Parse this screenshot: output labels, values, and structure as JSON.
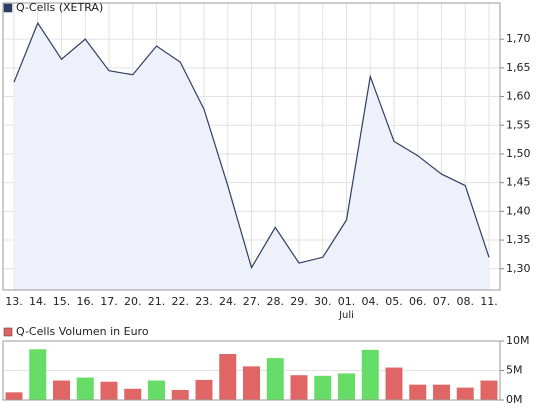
{
  "chart_data": [
    {
      "type": "line",
      "categories": [
        "13.",
        "14.",
        "15.",
        "16.",
        "17.",
        "20.",
        "21.",
        "22.",
        "23.",
        "24.",
        "27.",
        "28.",
        "29.",
        "30.",
        "01.",
        "04.",
        "05.",
        "06.",
        "07.",
        "08.",
        "11."
      ],
      "series": [
        {
          "name": "Q-Cells (XETRA)",
          "color": "#2e3f66",
          "fill": "#eef0fa",
          "values": [
            1.625,
            1.728,
            1.665,
            1.7,
            1.645,
            1.638,
            1.688,
            1.66,
            1.578,
            1.445,
            1.302,
            1.372,
            1.31,
            1.32,
            1.385,
            1.635,
            1.522,
            1.497,
            1.465,
            1.445,
            1.32
          ]
        }
      ],
      "annotations": [
        {
          "text": "Juli",
          "category": "01."
        }
      ],
      "ylim": [
        1.263,
        1.763
      ],
      "yticks": [
        {
          "value": 1.3,
          "label": "1,30"
        },
        {
          "value": 1.35,
          "label": "1,35"
        },
        {
          "value": 1.4,
          "label": "1,40"
        },
        {
          "value": 1.45,
          "label": "1,45"
        },
        {
          "value": 1.5,
          "label": "1,50"
        },
        {
          "value": 1.55,
          "label": "1,55"
        },
        {
          "value": 1.6,
          "label": "1,60"
        },
        {
          "value": 1.65,
          "label": "1,65"
        },
        {
          "value": 1.7,
          "label": "1,70"
        }
      ],
      "grid": true
    },
    {
      "type": "bar",
      "series": [
        {
          "name": "Q-Cells Volumen in Euro",
          "color": "#e06666",
          "values": [
            1300000,
            8600000,
            3300000,
            3800000,
            3100000,
            1900000,
            3300000,
            1700000,
            3400000,
            7800000,
            5700000,
            7100000,
            4200000,
            4100000,
            4500000,
            8500000,
            5500000,
            2600000,
            2600000,
            2100000,
            3300000
          ],
          "colors": [
            "#e06666",
            "#66dd66",
            "#e06666",
            "#66dd66",
            "#e06666",
            "#e06666",
            "#66dd66",
            "#e06666",
            "#e06666",
            "#e06666",
            "#e06666",
            "#66dd66",
            "#e06666",
            "#66dd66",
            "#66dd66",
            "#66dd66",
            "#e06666",
            "#e06666",
            "#e06666",
            "#e06666",
            "#e06666"
          ]
        }
      ],
      "ylim": [
        0,
        10000000
      ],
      "yticks": [
        {
          "value": 0,
          "label": "0M"
        },
        {
          "value": 5000000,
          "label": "5M"
        },
        {
          "value": 10000000,
          "label": "10M"
        }
      ],
      "grid": true
    }
  ]
}
